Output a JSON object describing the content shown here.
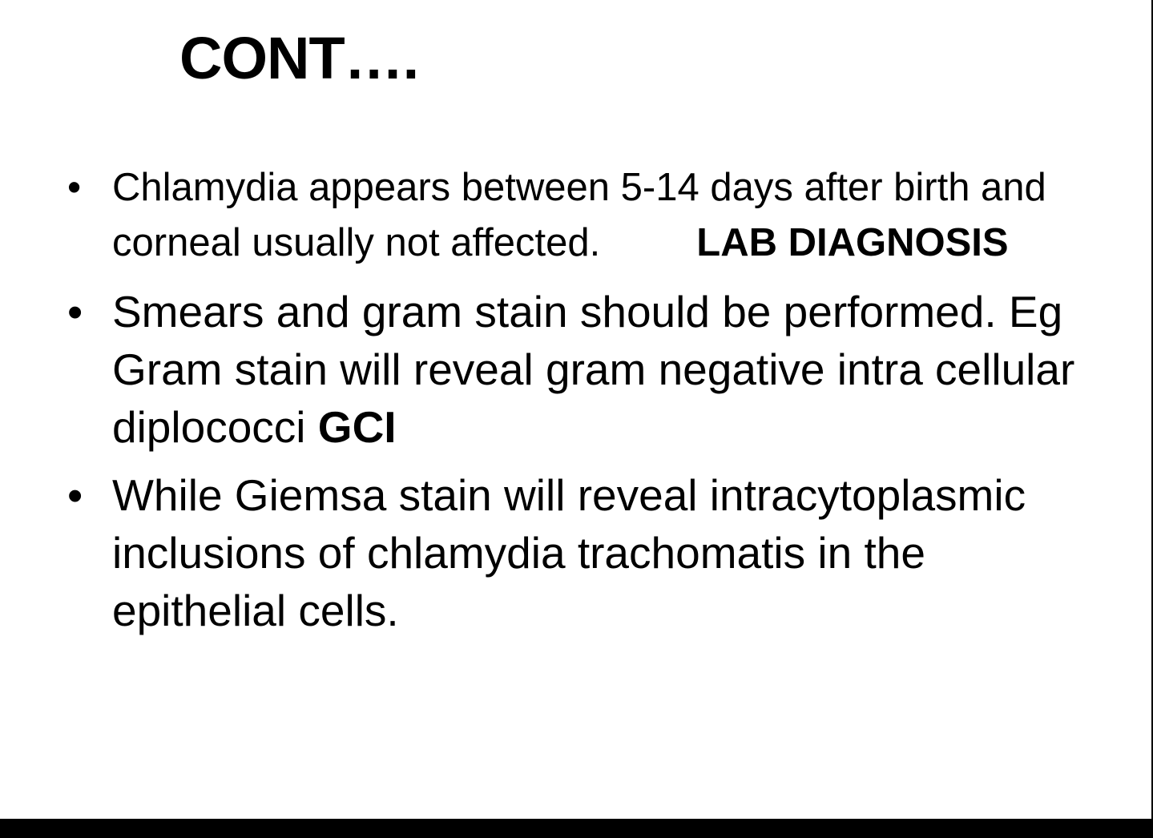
{
  "slide": {
    "title": "CONT….",
    "bullets": [
      {
        "text": "Chlamydia appears between 5-14 days after birth and corneal usually not affected.",
        "bold_suffix": "LAB DIAGNOSIS"
      },
      {
        "text": "Smears and gram stain should be performed. Eg Gram stain will reveal gram negative intra cellular diplococci ",
        "bold_suffix": "GCI"
      },
      {
        "text": "While Giemsa stain will reveal intracytoplasmic inclusions of chlamydia trachomatis in the epithelial cells."
      }
    ],
    "bullet_glyph": "•",
    "colors": {
      "background": "#ffffff",
      "text": "#000000",
      "border": "#000000"
    }
  }
}
